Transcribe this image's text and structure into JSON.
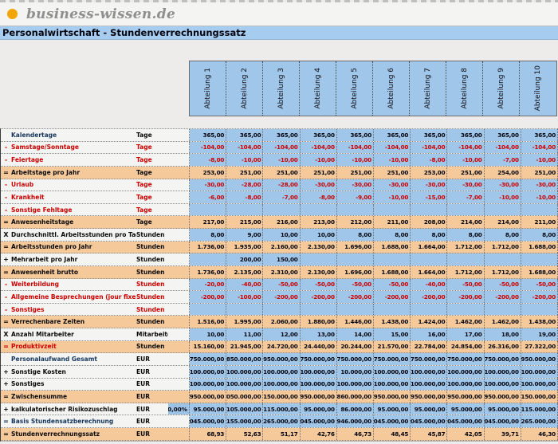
{
  "logo": {
    "text": "business-wissen.de",
    "dot_color": "#F2A504"
  },
  "title": "Personalwirtschaft - Stundenverrechnungssatz",
  "table": {
    "columns": [
      "Abteilung 1",
      "Abteilung 2",
      "Abteilung 3",
      "Abteilung 4",
      "Abteilung 5",
      "Abteilung 6",
      "Abteilung 7",
      "Abteilung 8",
      "Abteilung 9",
      "Abteilung 10"
    ],
    "colors": {
      "input_cell_blue": "#A0C6EA",
      "subtotal_orange": "#F6C99B",
      "negative_red": "#CC0000",
      "title_bar_blue": "#A6CCF0"
    },
    "rows": [
      {
        "prefix": "",
        "label": "Kalendertage",
        "unit": "Tage",
        "label_color": "navy",
        "value_color": "black",
        "row_type": "blue",
        "extra": "",
        "values": [
          "365,00",
          "365,00",
          "365,00",
          "365,00",
          "365,00",
          "365,00",
          "365,00",
          "365,00",
          "365,00",
          "365,00"
        ]
      },
      {
        "prefix": "-",
        "label": "Samstage/Sonntage",
        "unit": "Tage",
        "label_color": "red",
        "value_color": "red",
        "row_type": "blue",
        "extra": "",
        "values": [
          "-104,00",
          "-104,00",
          "-104,00",
          "-104,00",
          "-104,00",
          "-104,00",
          "-104,00",
          "-104,00",
          "-104,00",
          "-104,00"
        ]
      },
      {
        "prefix": "-",
        "label": "Feiertage",
        "unit": "Tage",
        "label_color": "red",
        "value_color": "red",
        "row_type": "blue",
        "extra": "",
        "values": [
          "-8,00",
          "-10,00",
          "-10,00",
          "-10,00",
          "-10,00",
          "-10,00",
          "-8,00",
          "-10,00",
          "-7,00",
          "-10,00"
        ]
      },
      {
        "prefix": "=",
        "label": "Arbeitstage pro Jahr",
        "unit": "Tage",
        "label_color": "black",
        "value_color": "black",
        "row_type": "orange",
        "extra": "",
        "values": [
          "253,00",
          "251,00",
          "251,00",
          "251,00",
          "251,00",
          "251,00",
          "253,00",
          "251,00",
          "254,00",
          "251,00"
        ]
      },
      {
        "prefix": "-",
        "label": "Urlaub",
        "unit": "Tage",
        "label_color": "red",
        "value_color": "red",
        "row_type": "blue",
        "extra": "",
        "values": [
          "-30,00",
          "-28,00",
          "-28,00",
          "-30,00",
          "-30,00",
          "-30,00",
          "-30,00",
          "-30,00",
          "-30,00",
          "-30,00"
        ]
      },
      {
        "prefix": "-",
        "label": "Krankheit",
        "unit": "Tage",
        "label_color": "red",
        "value_color": "red",
        "row_type": "blue",
        "extra": "",
        "values": [
          "-6,00",
          "-8,00",
          "-7,00",
          "-8,00",
          "-9,00",
          "-10,00",
          "-15,00",
          "-7,00",
          "-10,00",
          "-10,00"
        ]
      },
      {
        "prefix": "-",
        "label": "Sonstige Fehltage",
        "unit": "Tage",
        "label_color": "red",
        "value_color": "red",
        "row_type": "blue",
        "extra": "",
        "values": [
          "",
          "",
          "",
          "",
          "",
          "",
          "",
          "",
          "",
          ""
        ]
      },
      {
        "prefix": "=",
        "label": "Anwesenheitstage",
        "unit": "Tage",
        "label_color": "black",
        "value_color": "black",
        "row_type": "orange",
        "extra": "",
        "values": [
          "217,00",
          "215,00",
          "216,00",
          "213,00",
          "212,00",
          "211,00",
          "208,00",
          "214,00",
          "214,00",
          "211,00"
        ]
      },
      {
        "prefix": "X",
        "label": "Durchschnittl. Arbeitsstunden pro Tag",
        "unit": "Stunden",
        "label_color": "black",
        "value_color": "black",
        "row_type": "blue",
        "extra": "",
        "values": [
          "8,00",
          "9,00",
          "10,00",
          "10,00",
          "8,00",
          "8,00",
          "8,00",
          "8,00",
          "8,00",
          "8,00"
        ]
      },
      {
        "prefix": "=",
        "label": "Arbeitsstunden pro Jahr",
        "unit": "Stunden",
        "label_color": "black",
        "value_color": "black",
        "row_type": "orange",
        "extra": "",
        "values": [
          "1.736,00",
          "1.935,00",
          "2.160,00",
          "2.130,00",
          "1.696,00",
          "1.688,00",
          "1.664,00",
          "1.712,00",
          "1.712,00",
          "1.688,00"
        ]
      },
      {
        "prefix": "+",
        "label": "Mehrarbeit pro Jahr",
        "unit": "Stunden",
        "label_color": "black",
        "value_color": "black",
        "row_type": "blue",
        "extra": "",
        "values": [
          "",
          "200,00",
          "150,00",
          "",
          "",
          "",
          "",
          "",
          "",
          ""
        ]
      },
      {
        "prefix": "=",
        "label": "Anwesenheit brutto",
        "unit": "Stunden",
        "label_color": "black",
        "value_color": "black",
        "row_type": "orange",
        "extra": "",
        "values": [
          "1.736,00",
          "2.135,00",
          "2.310,00",
          "2.130,00",
          "1.696,00",
          "1.688,00",
          "1.664,00",
          "1.712,00",
          "1.712,00",
          "1.688,00"
        ]
      },
      {
        "prefix": "-",
        "label": "Weiterbildung",
        "unit": "Stunden",
        "label_color": "red",
        "value_color": "red",
        "row_type": "blue",
        "extra": "",
        "values": [
          "-20,00",
          "-40,00",
          "-50,00",
          "-50,00",
          "-50,00",
          "-50,00",
          "-40,00",
          "-50,00",
          "-50,00",
          "-50,00"
        ]
      },
      {
        "prefix": "-",
        "label": "Allgemeine Besprechungen (jour fixe)",
        "unit": "Stunden",
        "label_color": "red",
        "value_color": "red",
        "row_type": "blue",
        "extra": "",
        "values": [
          "-200,00",
          "-100,00",
          "-200,00",
          "-200,00",
          "-200,00",
          "-200,00",
          "-200,00",
          "-200,00",
          "-200,00",
          "-200,00"
        ]
      },
      {
        "prefix": "-",
        "label": "Sonstiges",
        "unit": "Stunden",
        "label_color": "red",
        "value_color": "red",
        "row_type": "blue",
        "extra": "",
        "values": [
          "",
          "",
          "",
          "",
          "",
          "",
          "",
          "",
          "",
          ""
        ]
      },
      {
        "prefix": "=",
        "label": "Verrechenbare Zeiten",
        "unit": "Stunden",
        "label_color": "black",
        "value_color": "black",
        "row_type": "orange",
        "extra": "",
        "values": [
          "1.516,00",
          "1.995,00",
          "2.060,00",
          "1.880,00",
          "1.446,00",
          "1.438,00",
          "1.424,00",
          "1.462,00",
          "1.462,00",
          "1.438,00"
        ]
      },
      {
        "prefix": "X",
        "label": "Anzahl Mitarbeiter",
        "unit": "Mitarbeiter",
        "label_color": "black",
        "value_color": "black",
        "row_type": "blue",
        "extra": "",
        "values": [
          "10,00",
          "11,00",
          "12,00",
          "13,00",
          "14,00",
          "15,00",
          "16,00",
          "17,00",
          "18,00",
          "19,00"
        ]
      },
      {
        "prefix": "=",
        "label": "Produktivzeit",
        "unit": "Stunden",
        "label_color": "red",
        "value_color": "black",
        "row_type": "orange",
        "extra": "",
        "values": [
          "15.160,00",
          "21.945,00",
          "24.720,00",
          "24.440,00",
          "20.244,00",
          "21.570,00",
          "22.784,00",
          "24.854,00",
          "26.316,00",
          "27.322,00"
        ]
      },
      {
        "prefix": "",
        "label": "Personalaufwand Gesamt",
        "unit": "EUR",
        "label_color": "navy",
        "value_color": "black",
        "row_type": "blue",
        "extra": "",
        "values": [
          "750.000,00",
          "850.000,00",
          "950.000,00",
          "750.000,00",
          "750.000,00",
          "750.000,00",
          "750.000,00",
          "750.000,00",
          "750.000,00",
          "950.000,00"
        ]
      },
      {
        "prefix": "+",
        "label": "Sonstige Kosten",
        "unit": "EUR",
        "label_color": "black",
        "value_color": "black",
        "row_type": "blue",
        "extra": "",
        "values": [
          "100.000,00",
          "100.000,00",
          "100.000,00",
          "100.000,00",
          "10.000,00",
          "100.000,00",
          "100.000,00",
          "100.000,00",
          "100.000,00",
          "100.000,00"
        ]
      },
      {
        "prefix": "+",
        "label": "Sonstiges",
        "unit": "EUR",
        "label_color": "black",
        "value_color": "black",
        "row_type": "blue",
        "extra": "",
        "values": [
          "100.000,00",
          "100.000,00",
          "100.000,00",
          "100.000,00",
          "100.000,00",
          "100.000,00",
          "100.000,00",
          "100.000,00",
          "100.000,00",
          "100.000,00"
        ]
      },
      {
        "prefix": "=",
        "label": "Zwischensumme",
        "unit": "EUR",
        "label_color": "black",
        "value_color": "black",
        "row_type": "orange",
        "extra": "",
        "values": [
          "950.000,00",
          "1.050.000,00",
          "1.150.000,00",
          "950.000,00",
          "860.000,00",
          "950.000,00",
          "950.000,00",
          "950.000,00",
          "950.000,00",
          "1.150.000,00"
        ]
      },
      {
        "prefix": "+",
        "label": "kalkulatorischer Risikozuschlag",
        "unit": "EUR",
        "label_color": "black",
        "value_color": "black",
        "row_type": "blue",
        "extra": "10,00%",
        "values": [
          "95.000,00",
          "105.000,00",
          "115.000,00",
          "95.000,00",
          "86.000,00",
          "95.000,00",
          "95.000,00",
          "95.000,00",
          "95.000,00",
          "115.000,00"
        ]
      },
      {
        "prefix": "=",
        "label": "Basis Stundensatzberechnung",
        "unit": "EUR",
        "label_color": "navy",
        "value_color": "black",
        "row_type": "blue",
        "extra": "",
        "values": [
          "1.045.000,00",
          "1.155.000,00",
          "1.265.000,00",
          "1.045.000,00",
          "946.000,00",
          "1.045.000,00",
          "1.045.000,00",
          "1.045.000,00",
          "1.045.000,00",
          "1.265.000,00"
        ]
      },
      {
        "prefix": "=",
        "label": "Stundenverrechnungssatz",
        "unit": "EUR",
        "label_color": "black",
        "value_color": "black",
        "row_type": "orange",
        "extra": "",
        "values": [
          "68,93",
          "52,63",
          "51,17",
          "42,76",
          "46,73",
          "48,45",
          "45,87",
          "42,05",
          "39,71",
          "46,30"
        ]
      }
    ]
  }
}
